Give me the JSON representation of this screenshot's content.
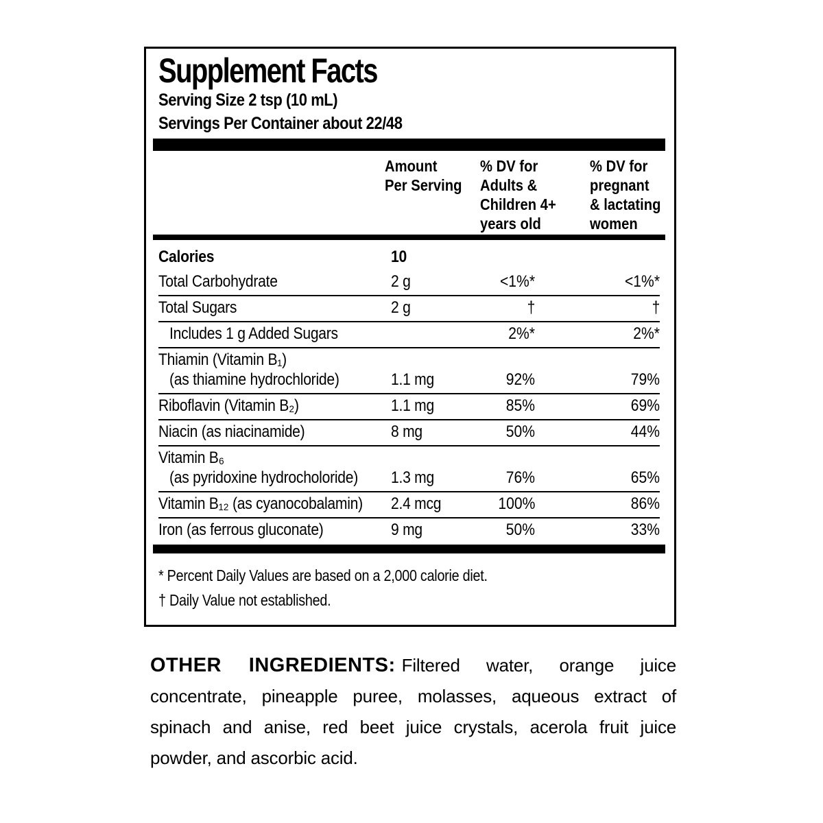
{
  "panel": {
    "title": "Supplement Facts",
    "serving_size": "Serving Size 2 tsp (10 mL)",
    "servings_per_container": "Servings Per Container about 22/48",
    "columns": {
      "amount": [
        "Amount",
        "Per Serving"
      ],
      "dv_adults": [
        "% DV for",
        "Adults &",
        "Children 4+",
        "years old"
      ],
      "dv_pregnant": [
        "% DV for",
        "pregnant",
        "& lactating",
        "women"
      ]
    },
    "rows": [
      {
        "name": "Calories",
        "amount": "10",
        "dv_adults": "",
        "dv_pregnant": ""
      },
      {
        "name": "Total Carbohydrate",
        "amount": "2 g",
        "dv_adults": "<1%*",
        "dv_pregnant": "<1%*"
      },
      {
        "name": "Total Sugars",
        "amount": "2 g",
        "dv_adults": "†",
        "dv_pregnant": "†"
      },
      {
        "name": "Includes 1 g Added Sugars",
        "amount": "",
        "dv_adults": "2%*",
        "dv_pregnant": "2%*"
      },
      {
        "name": "Thiamin (Vitamin B₁)",
        "name2": "(as thiamine hydrochloride)",
        "amount": "1.1 mg",
        "dv_adults": "92%",
        "dv_pregnant": "79%"
      },
      {
        "name": "Riboflavin (Vitamin B₂)",
        "amount": "1.1 mg",
        "dv_adults": "85%",
        "dv_pregnant": "69%"
      },
      {
        "name": "Niacin (as niacinamide)",
        "amount": "8 mg",
        "dv_adults": "50%",
        "dv_pregnant": "44%"
      },
      {
        "name": "Vitamin B₆",
        "name2": "(as pyridoxine hydrocholoride)",
        "amount": "1.3 mg",
        "dv_adults": "76%",
        "dv_pregnant": "65%"
      },
      {
        "name": "Vitamin B₁₂ (as cyanocobalamin)",
        "amount": "2.4 mcg",
        "dv_adults": "100%",
        "dv_pregnant": "86%"
      },
      {
        "name": "Iron (as ferrous gluconate)",
        "amount": "9 mg",
        "dv_adults": "50%",
        "dv_pregnant": "33%"
      }
    ],
    "footnotes": {
      "daily_value": "* Percent Daily Values are based on a 2,000 calorie diet.",
      "not_established": "† Daily Value not established."
    }
  },
  "other_ingredients": {
    "heading": "OTHER INGREDIENTS:",
    "text": "Filtered water, orange juice concentrate, pineapple puree, molasses, aqueous extract of spinach and anise, red beet juice crystals, acerola fruit juice powder, and ascorbic acid."
  }
}
